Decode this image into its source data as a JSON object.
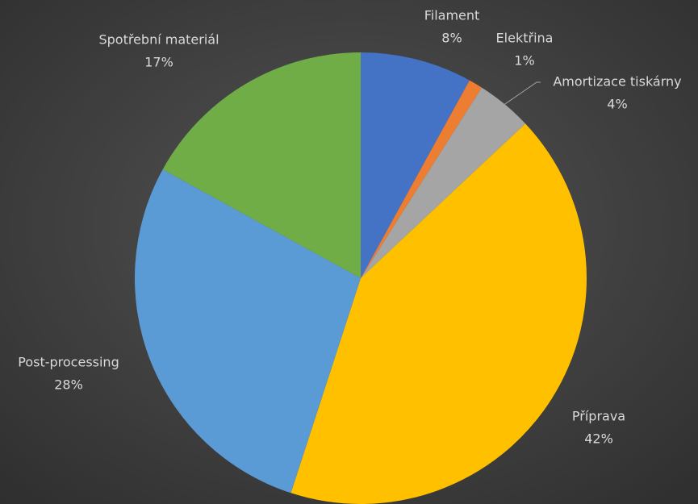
{
  "chart_data": {
    "type": "pie",
    "categories": [
      "Filament",
      "Elektřina",
      "Amortizace tiskárny",
      "Příprava",
      "Post-processing",
      "Spotřební materiál"
    ],
    "values": [
      8,
      1,
      4,
      42,
      28,
      17
    ],
    "value_labels": [
      "8%",
      "1%",
      "4%",
      "42%",
      "28%",
      "17%"
    ],
    "colors": [
      "#4472c4",
      "#ed7d31",
      "#a5a5a5",
      "#ffc000",
      "#5b9bd5",
      "#70ad47"
    ]
  }
}
